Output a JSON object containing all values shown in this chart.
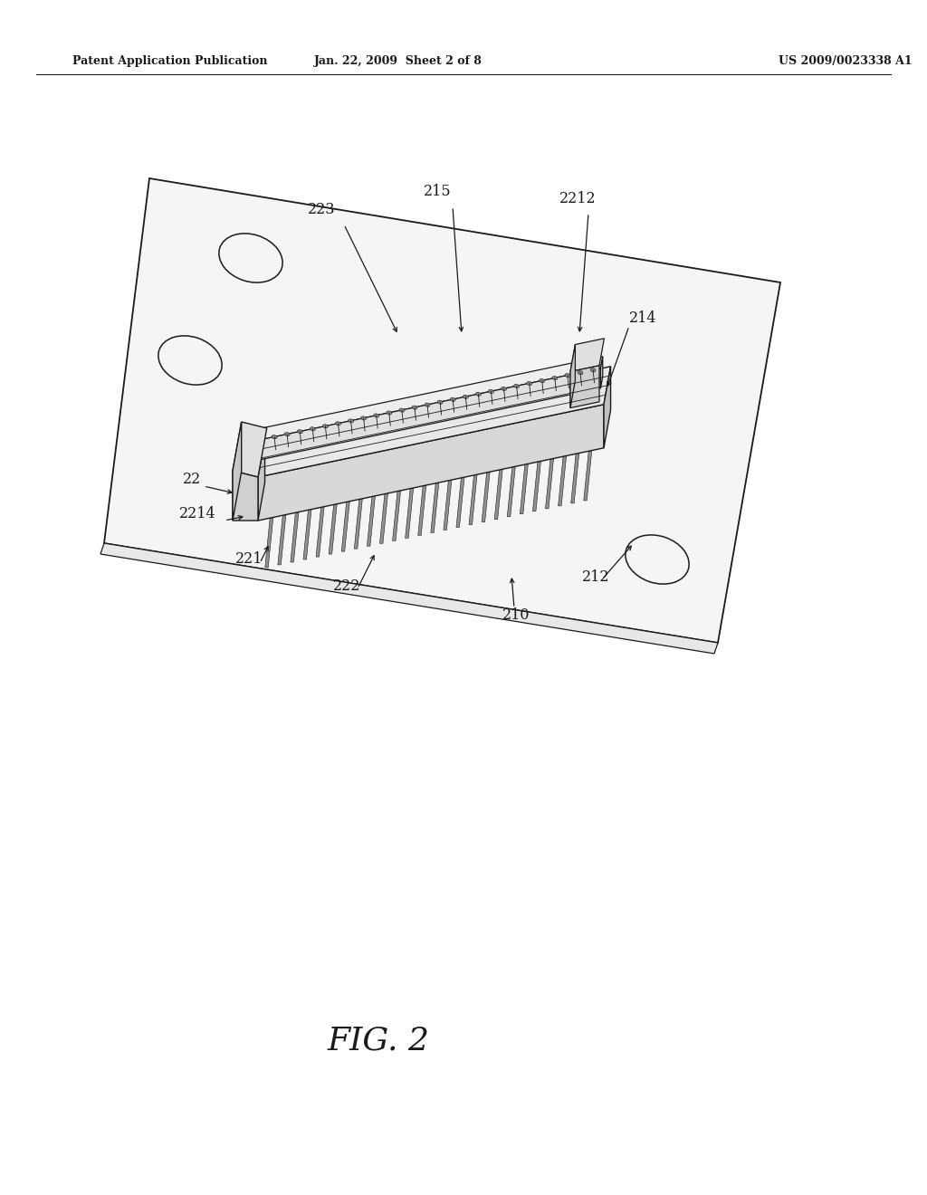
{
  "header_left": "Patent Application Publication",
  "header_mid": "Jan. 22, 2009  Sheet 2 of 8",
  "header_right": "US 2009/0023338 A1",
  "figure_label": "FIG. 2",
  "bg_color": "#ffffff",
  "line_color": "#1a1a1a",
  "pcb_fill": "#f5f5f5",
  "conn_top_fill": "#e0e0e0",
  "conn_side_fill": "#c8c8c8",
  "conn_dark_fill": "#a8a8a8",
  "pin_fill": "#888888"
}
